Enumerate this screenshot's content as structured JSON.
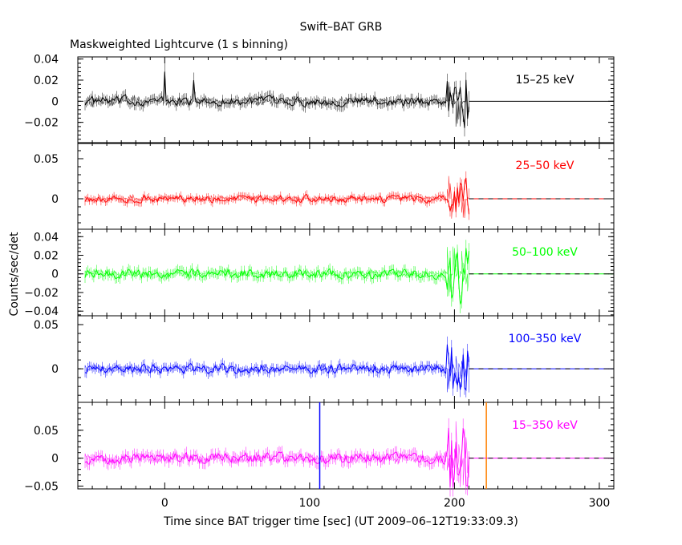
{
  "title": "Swift–BAT GRB",
  "subtitle": "Maskweighted Lightcurve (1 s binning)",
  "chart_data": {
    "type": "line",
    "title": "Swift–BAT GRB",
    "subtitle": "Maskweighted Lightcurve (1 s binning)",
    "xlabel": "Time since BAT trigger time [sec] (UT 2009–06–12T19:33:09.3)",
    "ylabel": "Counts/sec/det",
    "xlim": [
      -60,
      310
    ],
    "x_ticks": [
      0,
      100,
      200,
      300
    ],
    "x_tick_labels": [
      "0",
      "100",
      "200",
      "300"
    ],
    "data_end": 210,
    "burst_start": 195,
    "grid": false,
    "panels": [
      {
        "name": "15–25 keV",
        "color": "#000000",
        "ylim": [
          -0.04,
          0.042
        ],
        "yticks": [
          -0.02,
          0,
          0.02,
          0.04
        ],
        "ytick_labels": [
          "−0.02",
          "0",
          "0.02",
          "0.04"
        ],
        "noise_amplitude": 0.007,
        "burst_amplitude": 0.025,
        "spikes": [
          {
            "x": 0,
            "y": 0.028
          },
          {
            "x": 20,
            "y": 0.02
          }
        ]
      },
      {
        "name": "25–50 keV",
        "color": "#ff0000",
        "ylim": [
          -0.038,
          0.07
        ],
        "yticks": [
          0,
          0.05
        ],
        "ytick_labels": [
          "0",
          "0.05"
        ],
        "noise_amplitude": 0.007,
        "burst_amplitude": 0.028,
        "spikes": []
      },
      {
        "name": "50–100 keV",
        "color": "#00ff00",
        "ylim": [
          -0.045,
          0.048
        ],
        "yticks": [
          -0.04,
          -0.02,
          0,
          0.02,
          0.04
        ],
        "ytick_labels": [
          "−0.04",
          "−0.02",
          "0",
          "0.02",
          "0.04"
        ],
        "noise_amplitude": 0.008,
        "burst_amplitude": 0.03,
        "spikes": []
      },
      {
        "name": "100–350 keV",
        "color": "#0000ff",
        "ylim": [
          -0.038,
          0.06
        ],
        "yticks": [
          0,
          0.05
        ],
        "ytick_labels": [
          "0",
          "0.05"
        ],
        "noise_amplitude": 0.008,
        "burst_amplitude": 0.03,
        "spikes": []
      },
      {
        "name": "15–350 keV",
        "color": "#ff00ff",
        "ylim": [
          -0.055,
          0.1
        ],
        "yticks": [
          -0.05,
          0,
          0.05
        ],
        "ytick_labels": [
          "−0.05",
          "0",
          "0.05"
        ],
        "noise_amplitude": 0.015,
        "burst_amplitude": 0.06,
        "spikes": []
      }
    ],
    "markers": [
      {
        "panel": 4,
        "x": 107,
        "color": "#0000ff"
      },
      {
        "panel": 4,
        "x": 222,
        "color": "#ff8000"
      }
    ]
  }
}
